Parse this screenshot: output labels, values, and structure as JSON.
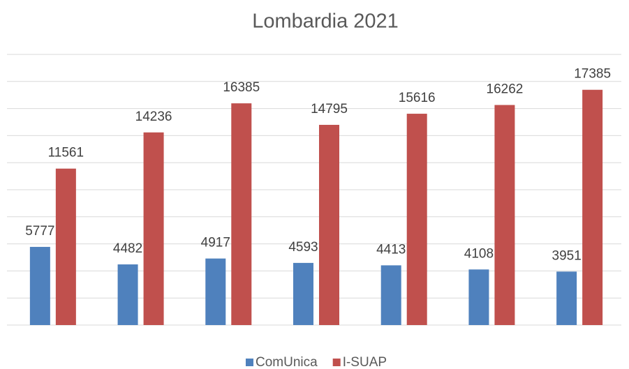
{
  "chart_data": {
    "type": "bar",
    "title": "Lombardia 2021",
    "categories": [
      null,
      null,
      null,
      null,
      null,
      null,
      null
    ],
    "series": [
      {
        "name": "ComUnica",
        "color": "#4f81bd",
        "values": [
          5777,
          4482,
          4917,
          4593,
          4413,
          4108,
          3951
        ]
      },
      {
        "name": "I-SUAP",
        "color": "#c0504d",
        "values": [
          11561,
          14236,
          16385,
          14795,
          15616,
          16262,
          17385
        ]
      }
    ],
    "ylim": [
      0,
      20000
    ],
    "yticks": [
      0,
      2000,
      4000,
      6000,
      8000,
      10000,
      12000,
      14000,
      16000,
      18000,
      20000
    ],
    "grid": true,
    "legend": "bottom"
  }
}
